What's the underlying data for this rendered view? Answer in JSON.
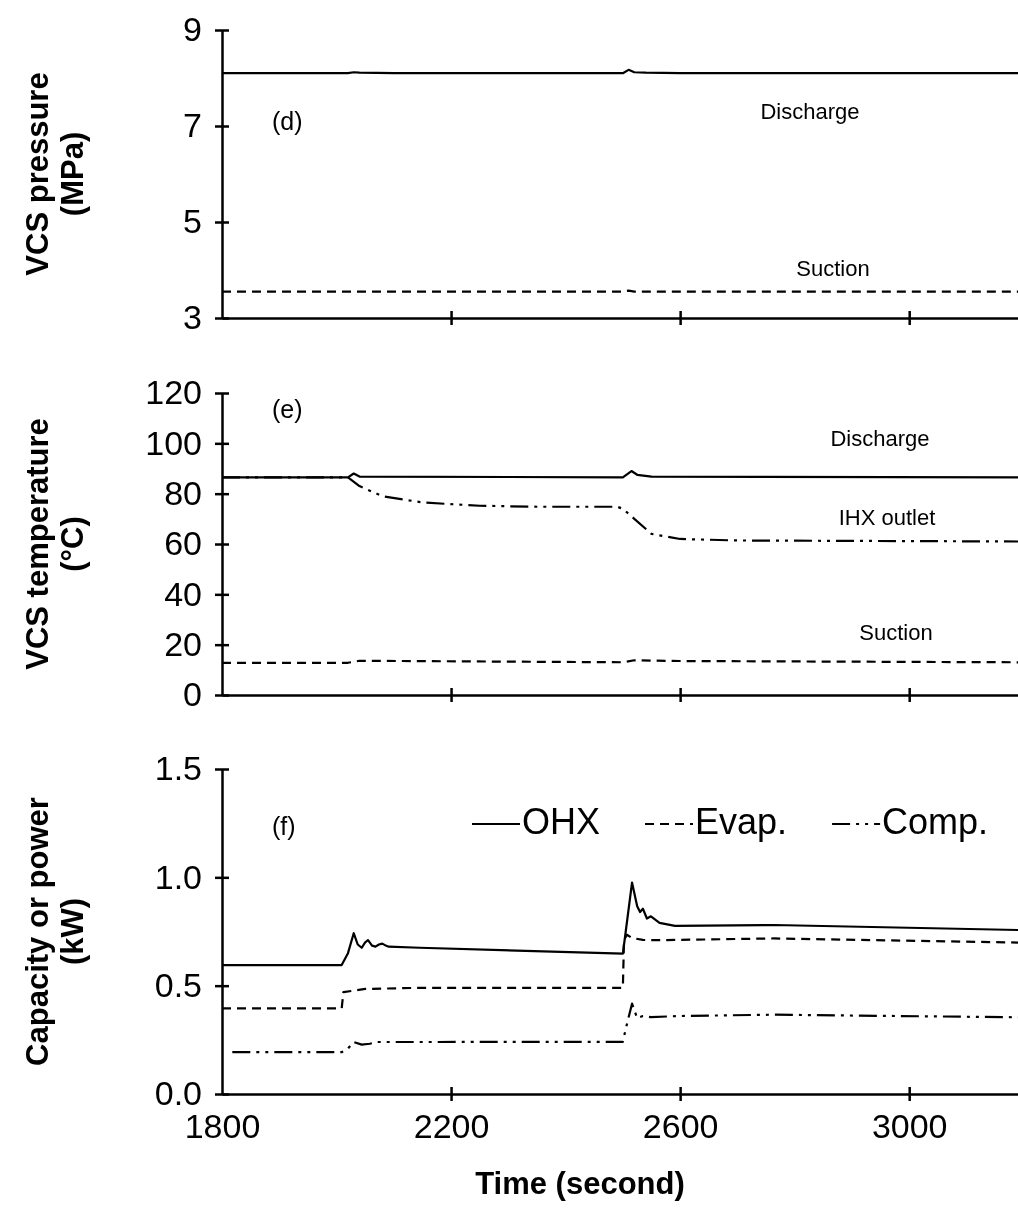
{
  "chart_data": [
    {
      "type": "line",
      "title": "(d)",
      "ylabel": "VCS pressure (MPa)",
      "xlim": [
        1800,
        3190
      ],
      "xticks": [
        1800,
        2200,
        2600,
        3000
      ],
      "ylim": [
        3,
        9
      ],
      "yticks": [
        3,
        5,
        7,
        9
      ],
      "tick_labels": "y",
      "legend": false,
      "grid": false,
      "marker": "none",
      "annotations": [
        "Discharge",
        "Suction"
      ],
      "series": [
        {
          "color": "#000000",
          "line_style": "solid",
          "x": [
            1800,
            2020,
            2030,
            2040,
            2100,
            2500,
            2510,
            2520,
            2540,
            2600,
            3190
          ],
          "values": [
            8.1,
            8.1,
            8.12,
            8.11,
            8.1,
            8.1,
            8.17,
            8.12,
            8.11,
            8.1,
            8.1
          ]
        },
        {
          "color": "#000000",
          "line_style": "dashed",
          "x": [
            1800,
            2500,
            2510,
            2520,
            3190
          ],
          "values": [
            3.55,
            3.55,
            3.57,
            3.55,
            3.55
          ]
        }
      ]
    },
    {
      "type": "line",
      "title": "(e)",
      "ylabel": "VCS temperature (°C)",
      "xlim": [
        1800,
        3190
      ],
      "xticks": [
        1800,
        2200,
        2600,
        3000
      ],
      "ylim": [
        0,
        120
      ],
      "yticks": [
        0,
        20,
        40,
        60,
        80,
        100,
        120
      ],
      "tick_labels": "y",
      "legend": false,
      "grid": false,
      "marker": "none",
      "annotations": [
        "Discharge",
        "IHX outlet",
        "Suction"
      ],
      "series": [
        {
          "color": "#000000",
          "line_style": "solid",
          "x": [
            1800,
            2020,
            2030,
            2040,
            2500,
            2515,
            2525,
            2550,
            3190
          ],
          "values": [
            86.5,
            86.5,
            88,
            86.8,
            86.5,
            89,
            87.5,
            86.8,
            86.5
          ]
        },
        {
          "color": "#000000",
          "line_style": "dashdotdot",
          "x": [
            1800,
            2020,
            2040,
            2080,
            2150,
            2250,
            2350,
            2490,
            2500,
            2520,
            2550,
            2600,
            2700,
            3190
          ],
          "values": [
            86.5,
            86.5,
            83,
            79,
            76.5,
            75.2,
            74.8,
            74.8,
            74,
            70,
            64,
            62,
            61.4,
            61
          ]
        },
        {
          "color": "#000000",
          "line_style": "dashed",
          "x": [
            1800,
            2020,
            2040,
            2500,
            2520,
            2600,
            3190
          ],
          "values": [
            12.8,
            12.8,
            13.6,
            13,
            13.8,
            13.5,
            13
          ]
        }
      ]
    },
    {
      "type": "line",
      "title": "(f)",
      "xlabel": "Time (second)",
      "ylabel": "Capacity or power (kW)",
      "xlim": [
        1800,
        3190
      ],
      "xticks": [
        1800,
        2200,
        2600,
        3000
      ],
      "ylim": [
        0,
        1.5
      ],
      "yticks": [
        {
          "value": 0,
          "label": "0.0"
        },
        {
          "value": 0.5,
          "label": "0.5"
        },
        {
          "value": 1,
          "label": "1.0"
        },
        {
          "value": 1.5,
          "label": "1.5"
        }
      ],
      "legend": "top right",
      "grid": false,
      "marker": "none",
      "series": [
        {
          "name": "OHX",
          "color": "#000000",
          "line_style": "solid",
          "x": [
            1800,
            2009,
            2020,
            2030,
            2037,
            2044,
            2050,
            2055,
            2062,
            2068,
            2074,
            2080,
            2086,
            2091,
            2145,
            2500,
            2505,
            2516,
            2525,
            2530,
            2535,
            2542,
            2549,
            2564,
            2591,
            2764,
            3190
          ],
          "values": [
            0.595,
            0.595,
            0.65,
            0.742,
            0.69,
            0.675,
            0.7,
            0.71,
            0.685,
            0.68,
            0.69,
            0.694,
            0.685,
            0.68,
            0.675,
            0.648,
            0.75,
            0.976,
            0.867,
            0.84,
            0.855,
            0.81,
            0.82,
            0.79,
            0.776,
            0.78,
            0.757
          ]
        },
        {
          "name": "Evap.",
          "color": "#000000",
          "line_style": "dashed",
          "x": [
            1800,
            2009,
            2012,
            2050,
            2145,
            2500,
            2502,
            2507,
            2516,
            2535,
            2564,
            2764,
            3190
          ],
          "values": [
            0.395,
            0.395,
            0.47,
            0.485,
            0.49,
            0.49,
            0.71,
            0.735,
            0.72,
            0.711,
            0.71,
            0.718,
            0.699
          ]
        },
        {
          "name": "Comp.",
          "color": "#000000",
          "line_style": "dashdotdot",
          "x": [
            1818,
            2009,
            2020,
            2030,
            2044,
            2058,
            2070,
            2145,
            2500,
            2505,
            2516,
            2525,
            2535,
            2549,
            2600,
            2764,
            3190
          ],
          "values": [
            0.193,
            0.193,
            0.21,
            0.24,
            0.228,
            0.232,
            0.24,
            0.24,
            0.241,
            0.3,
            0.417,
            0.35,
            0.36,
            0.355,
            0.36,
            0.366,
            0.354
          ]
        }
      ]
    }
  ]
}
